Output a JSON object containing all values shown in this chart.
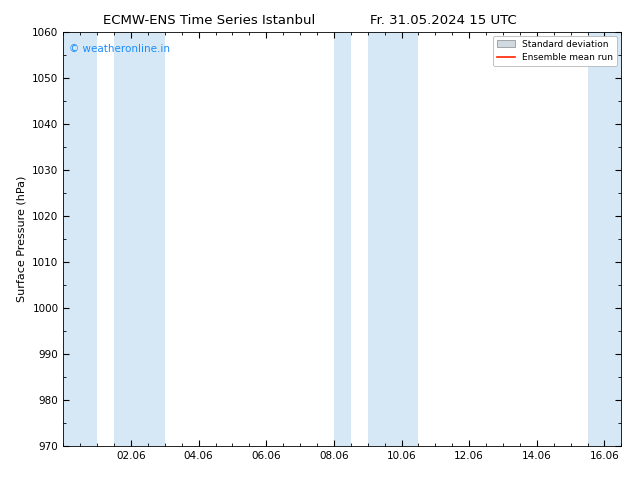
{
  "title_left": "ECMW-ENS Time Series Istanbul",
  "title_right": "Fr. 31.05.2024 15 UTC",
  "ylabel": "Surface Pressure (hPa)",
  "ylim": [
    970,
    1060
  ],
  "yticks": [
    970,
    980,
    990,
    1000,
    1010,
    1020,
    1030,
    1040,
    1050,
    1060
  ],
  "xlim_start": 0.0,
  "xlim_end": 16.5,
  "xtick_labels": [
    "02.06",
    "04.06",
    "06.06",
    "08.06",
    "10.06",
    "12.06",
    "14.06",
    "16.06"
  ],
  "xtick_positions": [
    2,
    4,
    6,
    8,
    10,
    12,
    14,
    16
  ],
  "shaded_bands": [
    {
      "x_start": 0.0,
      "x_end": 1.0
    },
    {
      "x_start": 1.5,
      "x_end": 3.0
    },
    {
      "x_start": 8.0,
      "x_end": 8.5
    },
    {
      "x_start": 9.0,
      "x_end": 10.5
    },
    {
      "x_start": 15.5,
      "x_end": 16.5
    }
  ],
  "shade_color": "#d6e8f5",
  "shade_alpha": 1.0,
  "watermark_text": "© weatheronline.in",
  "watermark_color": "#1a8cff",
  "legend_std_dev_color": "#d0d8e0",
  "legend_mean_color": "#ff2200",
  "background_color": "#ffffff",
  "title_fontsize": 9.5,
  "axis_fontsize": 8,
  "tick_fontsize": 7.5
}
